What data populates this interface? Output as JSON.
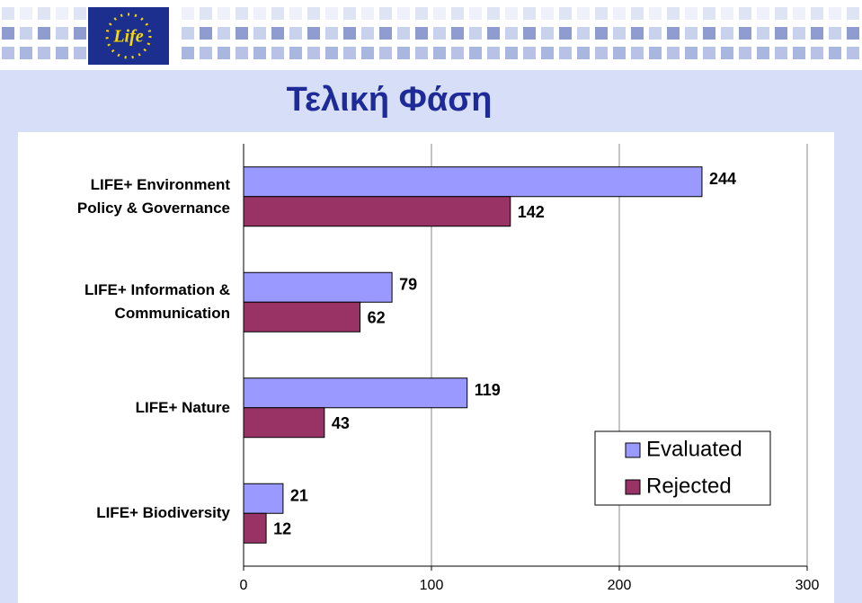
{
  "logo_text": "Life",
  "chart_data": {
    "type": "bar",
    "orientation": "horizontal",
    "title": "Τελική Φάση",
    "categories": [
      "LIFE+ Environment Policy & Governance",
      "LIFE+ Information & Communication",
      "LIFE+ Nature",
      "LIFE+ Biodiversity"
    ],
    "series": [
      {
        "name": "Evaluated",
        "color": "#9999ff",
        "values": [
          244,
          79,
          119,
          21
        ]
      },
      {
        "name": "Rejected",
        "color": "#993366",
        "values": [
          142,
          62,
          43,
          12
        ]
      }
    ],
    "xlim": [
      0,
      300
    ],
    "xticks": [
      0,
      100,
      200,
      300
    ],
    "grid": true,
    "legend": "right"
  }
}
